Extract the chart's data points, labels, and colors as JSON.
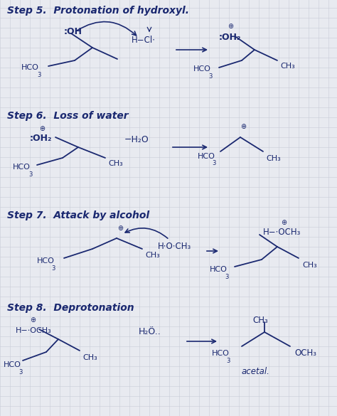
{
  "bg": "#e8eaf0",
  "grid": "#c8ccd8",
  "ink": "#1a2870",
  "fw": 4.74,
  "fh": 5.85,
  "dpi": 100,
  "step5_head": "Step 5.  Protonation of hydroxyl.",
  "step6_head": "Step 6.  Loss of water",
  "step7_head": "Step 7.  Attack by alcohol",
  "step8_head": "Step 8.  Deprotonation"
}
